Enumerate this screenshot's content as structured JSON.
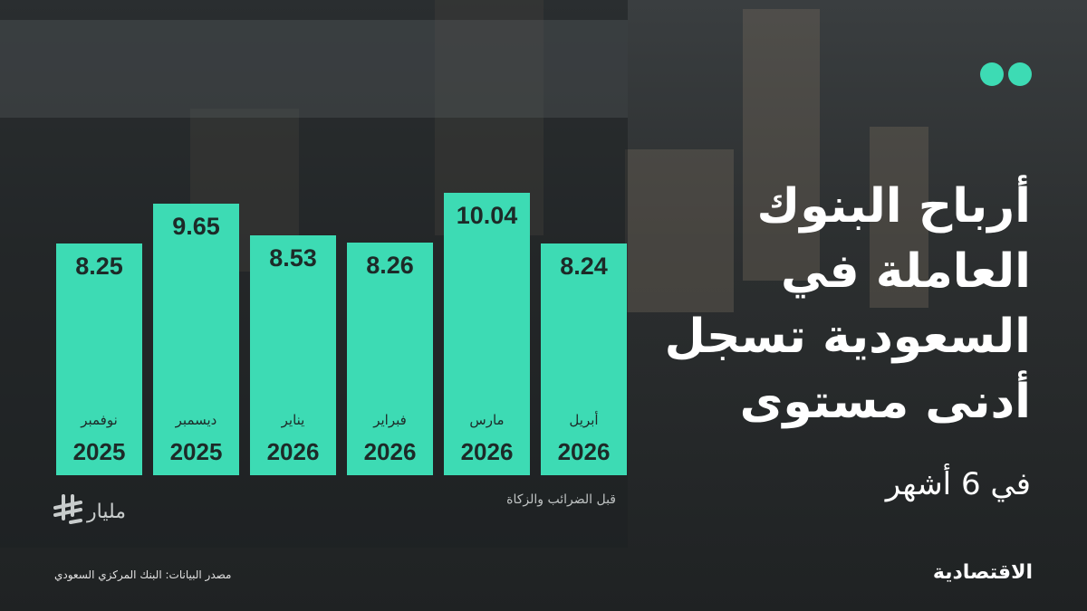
{
  "chart_data": {
    "type": "bar",
    "title": [
      "أرباح البنوك",
      "العاملة في",
      "السعودية تسجل",
      "أدنى مستوى"
    ],
    "subtitle": "في 6 أشهر",
    "categories": [
      "نوفمبر",
      "ديسمبر",
      "يناير",
      "فبراير",
      "مارس",
      "أبريل"
    ],
    "years": [
      "2025",
      "2025",
      "2026",
      "2026",
      "2026",
      "2026"
    ],
    "values": [
      8.25,
      9.65,
      8.53,
      8.26,
      10.04,
      8.24
    ],
    "color": "#3ddbb4",
    "unit": "مليار",
    "note": "قبل الضرائب والزكاة",
    "source": "مصدر البيانات: البنك المركزي السعودي",
    "brand": "الاقتصادية"
  }
}
